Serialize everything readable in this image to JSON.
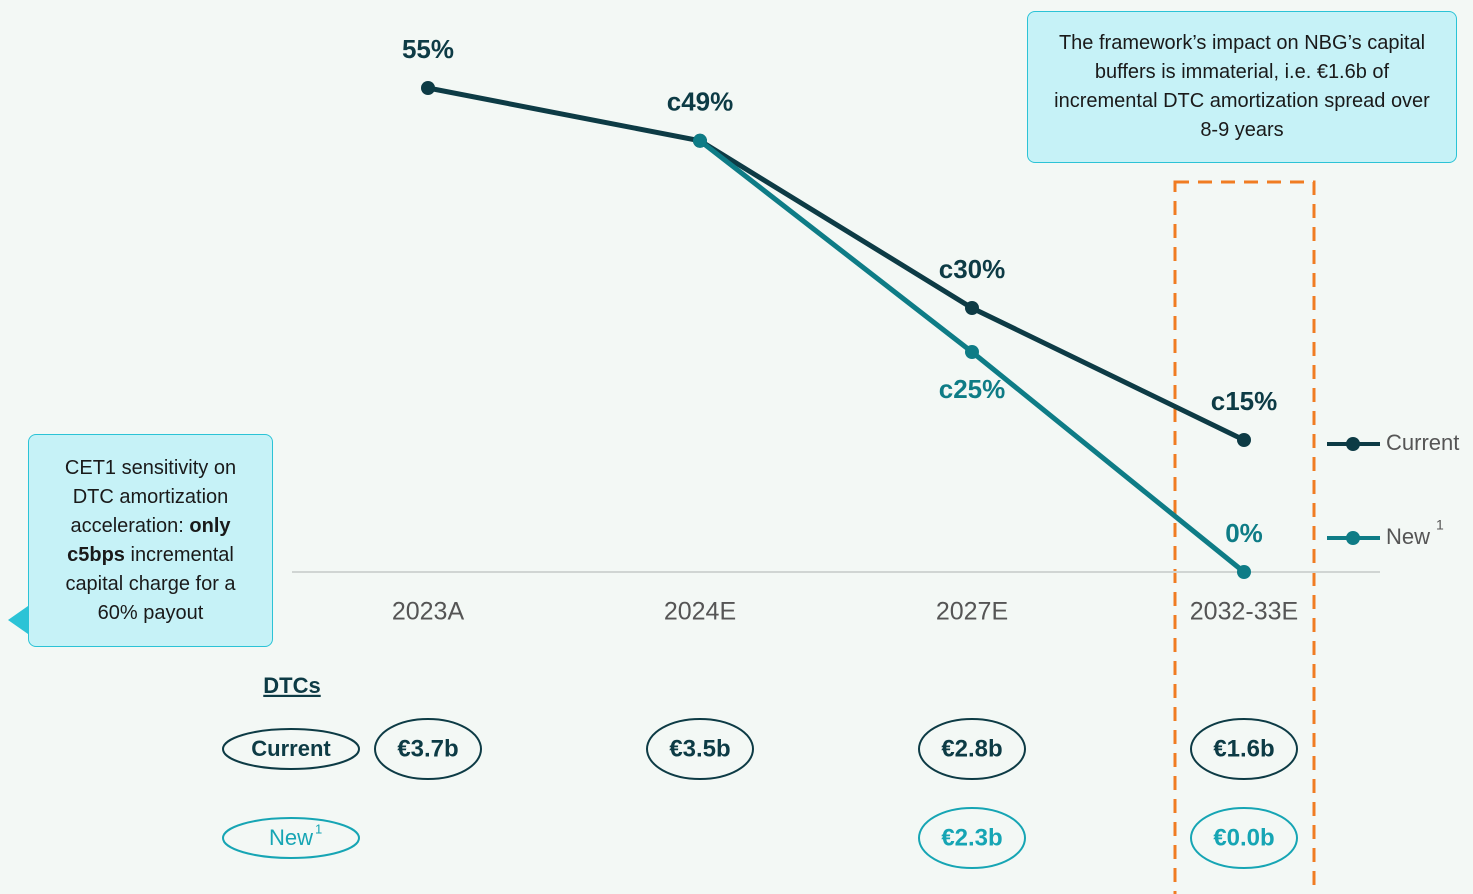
{
  "chart_data": {
    "type": "line",
    "categories": [
      "2023A",
      "2024E",
      "2027E",
      "2032-33E"
    ],
    "series": [
      {
        "name": "Current",
        "color": "#0d3b45",
        "values": [
          55,
          49,
          30,
          15
        ],
        "value_labels": [
          "55%",
          "c49%",
          "c30%",
          "c15%"
        ]
      },
      {
        "name": "New",
        "note": "1",
        "color": "#0e7c86",
        "values": [
          null,
          49,
          25,
          0
        ],
        "value_labels": [
          null,
          null,
          "c25%",
          "0%"
        ]
      }
    ],
    "ylim": [
      0,
      55
    ],
    "annotations": [
      "The framework’s impact on NBG’s capital buffers is immaterial, i.e. €1.6b of incremental DTC amortization spread over 8-9 years"
    ],
    "side_note": [
      {
        "text": "CET1 sensitivity on DTC amortization acceleration: "
      },
      {
        "text": "only c5bps",
        "bold": true
      },
      {
        "text": " incremental capital charge for a 60% payout"
      }
    ],
    "dtcs": {
      "title": "DTCs",
      "rows": [
        {
          "label": "Current",
          "values": [
            "€3.7b",
            "€3.5b",
            "€2.8b",
            "€1.6b"
          ]
        },
        {
          "label": "New",
          "note": "1",
          "values": [
            null,
            null,
            "€2.3b",
            "€0.0b"
          ]
        }
      ]
    }
  }
}
